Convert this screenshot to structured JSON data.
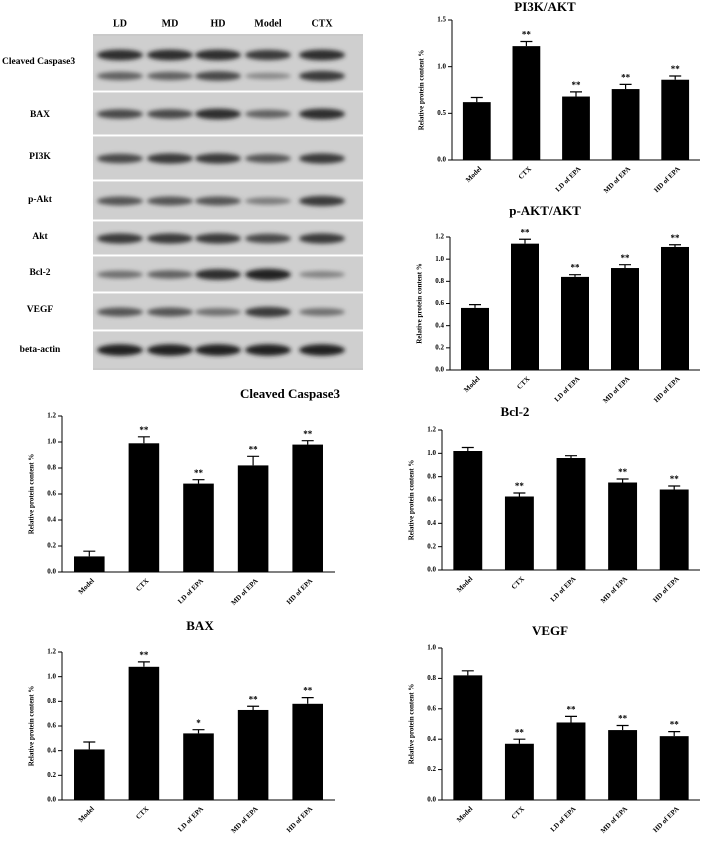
{
  "blot": {
    "lanes": [
      "LD",
      "MD",
      "HD",
      "Model",
      "CTX"
    ],
    "rows": [
      "Cleaved Caspase3",
      "BAX",
      "PI3K",
      "p-Akt",
      "Akt",
      "Bcl-2",
      "VEGF",
      "beta-actin"
    ]
  },
  "chart_data": [
    {
      "type": "bar",
      "title": "PI3K/AKT",
      "ylabel": "Relative protein content %",
      "color": "#000000",
      "categories": [
        "Model",
        "CTX",
        "LD of EPA",
        "MD of EPA",
        "HD of EPA"
      ],
      "values": [
        0.62,
        1.22,
        0.68,
        0.76,
        0.86
      ],
      "error": [
        0.05,
        0.05,
        0.05,
        0.05,
        0.04
      ],
      "annotations": [
        null,
        "**",
        "**",
        "**",
        "**"
      ],
      "ylim": [
        0,
        1.5
      ],
      "yticks": [
        {
          "value": 0,
          "label": "0.0"
        },
        0.5,
        {
          "value": 1,
          "label": "1.0"
        },
        1.5
      ]
    },
    {
      "type": "bar",
      "title": "p-AKT/AKT",
      "ylabel": "Relative protein content %",
      "color": "#000000",
      "categories": [
        "Model",
        "CTX",
        "LD of EPA",
        "MD of EPA",
        "HD of EPA"
      ],
      "values": [
        0.56,
        1.14,
        0.84,
        0.92,
        1.11
      ],
      "error": [
        0.03,
        0.04,
        0.02,
        0.03,
        0.02
      ],
      "annotations": [
        null,
        "**",
        "**",
        "**",
        "**"
      ],
      "ylim": [
        0,
        1.2
      ],
      "yticks": [
        {
          "value": 0,
          "label": "0.0"
        },
        0.2,
        0.4,
        0.6,
        0.8,
        {
          "value": 1,
          "label": "1.0"
        },
        1.2
      ]
    },
    {
      "type": "bar",
      "title": "Cleaved  Caspase3",
      "ylabel": "Relative protein content %",
      "color": "#000000",
      "categories": [
        "Model",
        "CTX",
        "LD of EPA",
        "MD of EPA",
        "HD of EPA"
      ],
      "values": [
        0.12,
        0.99,
        0.68,
        0.82,
        0.98
      ],
      "error": [
        0.04,
        0.05,
        0.03,
        0.07,
        0.03
      ],
      "annotations": [
        null,
        "**",
        "**",
        "**",
        "**"
      ],
      "ylim": [
        0,
        1.2
      ],
      "yticks": [
        {
          "value": 0,
          "label": "0.0"
        },
        0.2,
        0.4,
        0.6,
        0.8,
        {
          "value": 1,
          "label": "1.0"
        },
        1.2
      ]
    },
    {
      "type": "bar",
      "title": "Bcl-2",
      "ylabel": "Relative protein content %",
      "color": "#000000",
      "categories": [
        "Model",
        "CTX",
        "LD of EPA",
        "MD of EPA",
        "HD of EPA"
      ],
      "values": [
        1.02,
        0.63,
        0.96,
        0.75,
        0.69
      ],
      "error": [
        0.03,
        0.03,
        0.02,
        0.03,
        0.03
      ],
      "annotations": [
        null,
        "**",
        null,
        "**",
        "**"
      ],
      "ylim": [
        0,
        1.2
      ],
      "yticks": [
        {
          "value": 0,
          "label": "0.0"
        },
        0.2,
        0.4,
        0.6,
        0.8,
        {
          "value": 1,
          "label": "1.0"
        },
        1.2
      ]
    },
    {
      "type": "bar",
      "title": "BAX",
      "ylabel": "Relative protein content %",
      "color": "#000000",
      "categories": [
        "Model",
        "CTX",
        "LD of EPA",
        "MD of EPA",
        "HD of EPA"
      ],
      "values": [
        0.41,
        1.08,
        0.54,
        0.73,
        0.78
      ],
      "error": [
        0.06,
        0.04,
        0.03,
        0.03,
        0.05
      ],
      "annotations": [
        null,
        "**",
        "*",
        "**",
        "**"
      ],
      "ylim": [
        0,
        1.2
      ],
      "yticks": [
        {
          "value": 0,
          "label": "0.0"
        },
        0.2,
        0.4,
        0.6,
        0.8,
        {
          "value": 1,
          "label": "1.0"
        },
        1.2
      ]
    },
    {
      "type": "bar",
      "title": "VEGF",
      "ylabel": "Relative protein content %",
      "color": "#000000",
      "categories": [
        "Model",
        "CTX",
        "LD of EPA",
        "MD of EPA",
        "HD of EPA"
      ],
      "values": [
        0.82,
        0.37,
        0.51,
        0.46,
        0.42
      ],
      "error": [
        0.03,
        0.03,
        0.04,
        0.03,
        0.03
      ],
      "annotations": [
        null,
        "**",
        "**",
        "**",
        "**"
      ],
      "ylim": [
        0,
        1
      ],
      "yticks": [
        {
          "value": 0,
          "label": "0.0"
        },
        0.2,
        0.4,
        0.6,
        0.8,
        {
          "value": 1,
          "label": "1.0"
        }
      ]
    }
  ]
}
